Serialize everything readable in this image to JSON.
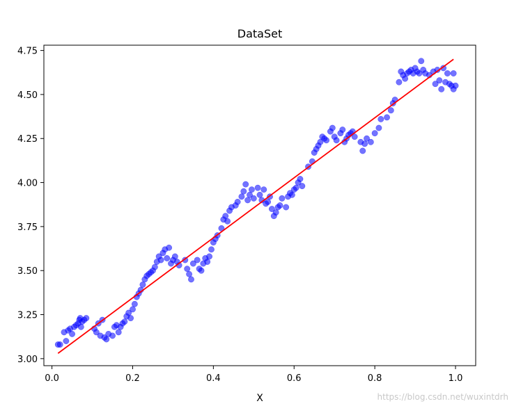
{
  "watermark": "https://blog.csdn.net/wuxintdrh",
  "chart_data": {
    "type": "scatter",
    "title": "DataSet",
    "xlabel": "X",
    "ylabel": "",
    "xlim": [
      -0.02,
      1.05
    ],
    "ylim": [
      2.96,
      4.78
    ],
    "xticks": [
      0.0,
      0.2,
      0.4,
      0.6,
      0.8,
      1.0
    ],
    "xtick_labels": [
      "0.0",
      "0.2",
      "0.4",
      "0.6",
      "0.8",
      "1.0"
    ],
    "yticks": [
      3.0,
      3.25,
      3.5,
      3.75,
      4.0,
      4.25,
      4.5,
      4.75
    ],
    "ytick_labels": [
      "3.00",
      "3.25",
      "3.50",
      "3.75",
      "4.00",
      "4.25",
      "4.50",
      "4.75"
    ],
    "grid": false,
    "colors": {
      "points": "#0000ff",
      "line": "#ff0000"
    },
    "series": [
      {
        "kind": "scatter",
        "points": [
          [
            0.015,
            3.08
          ],
          [
            0.02,
            3.08
          ],
          [
            0.03,
            3.15
          ],
          [
            0.035,
            3.1
          ],
          [
            0.04,
            3.16
          ],
          [
            0.045,
            3.17
          ],
          [
            0.05,
            3.14
          ],
          [
            0.055,
            3.18
          ],
          [
            0.06,
            3.19
          ],
          [
            0.065,
            3.2
          ],
          [
            0.068,
            3.22
          ],
          [
            0.07,
            3.23
          ],
          [
            0.072,
            3.18
          ],
          [
            0.075,
            3.21
          ],
          [
            0.08,
            3.22
          ],
          [
            0.085,
            3.23
          ],
          [
            0.105,
            3.17
          ],
          [
            0.11,
            3.15
          ],
          [
            0.115,
            3.2
          ],
          [
            0.12,
            3.13
          ],
          [
            0.125,
            3.22
          ],
          [
            0.13,
            3.12
          ],
          [
            0.135,
            3.11
          ],
          [
            0.14,
            3.14
          ],
          [
            0.15,
            3.13
          ],
          [
            0.155,
            3.18
          ],
          [
            0.16,
            3.19
          ],
          [
            0.165,
            3.15
          ],
          [
            0.17,
            3.18
          ],
          [
            0.175,
            3.2
          ],
          [
            0.18,
            3.21
          ],
          [
            0.185,
            3.24
          ],
          [
            0.19,
            3.26
          ],
          [
            0.195,
            3.23
          ],
          [
            0.2,
            3.28
          ],
          [
            0.205,
            3.31
          ],
          [
            0.21,
            3.35
          ],
          [
            0.215,
            3.37
          ],
          [
            0.22,
            3.39
          ],
          [
            0.225,
            3.42
          ],
          [
            0.23,
            3.45
          ],
          [
            0.235,
            3.47
          ],
          [
            0.24,
            3.48
          ],
          [
            0.245,
            3.49
          ],
          [
            0.25,
            3.5
          ],
          [
            0.255,
            3.52
          ],
          [
            0.26,
            3.55
          ],
          [
            0.265,
            3.58
          ],
          [
            0.27,
            3.56
          ],
          [
            0.275,
            3.6
          ],
          [
            0.28,
            3.62
          ],
          [
            0.285,
            3.57
          ],
          [
            0.29,
            3.63
          ],
          [
            0.295,
            3.54
          ],
          [
            0.3,
            3.56
          ],
          [
            0.305,
            3.58
          ],
          [
            0.31,
            3.55
          ],
          [
            0.315,
            3.53
          ],
          [
            0.33,
            3.56
          ],
          [
            0.335,
            3.51
          ],
          [
            0.34,
            3.48
          ],
          [
            0.345,
            3.45
          ],
          [
            0.35,
            3.54
          ],
          [
            0.36,
            3.56
          ],
          [
            0.365,
            3.51
          ],
          [
            0.37,
            3.5
          ],
          [
            0.375,
            3.54
          ],
          [
            0.38,
            3.57
          ],
          [
            0.385,
            3.55
          ],
          [
            0.39,
            3.58
          ],
          [
            0.395,
            3.62
          ],
          [
            0.4,
            3.66
          ],
          [
            0.405,
            3.68
          ],
          [
            0.41,
            3.7
          ],
          [
            0.42,
            3.74
          ],
          [
            0.425,
            3.79
          ],
          [
            0.43,
            3.81
          ],
          [
            0.435,
            3.78
          ],
          [
            0.44,
            3.84
          ],
          [
            0.445,
            3.86
          ],
          [
            0.455,
            3.87
          ],
          [
            0.46,
            3.89
          ],
          [
            0.47,
            3.92
          ],
          [
            0.475,
            3.95
          ],
          [
            0.48,
            3.99
          ],
          [
            0.485,
            3.9
          ],
          [
            0.49,
            3.93
          ],
          [
            0.495,
            3.96
          ],
          [
            0.5,
            3.91
          ],
          [
            0.51,
            3.97
          ],
          [
            0.515,
            3.93
          ],
          [
            0.52,
            3.9
          ],
          [
            0.525,
            3.96
          ],
          [
            0.53,
            3.88
          ],
          [
            0.535,
            3.89
          ],
          [
            0.54,
            3.92
          ],
          [
            0.545,
            3.85
          ],
          [
            0.55,
            3.81
          ],
          [
            0.555,
            3.83
          ],
          [
            0.56,
            3.86
          ],
          [
            0.565,
            3.87
          ],
          [
            0.57,
            3.91
          ],
          [
            0.58,
            3.86
          ],
          [
            0.585,
            3.92
          ],
          [
            0.59,
            3.94
          ],
          [
            0.595,
            3.93
          ],
          [
            0.6,
            3.96
          ],
          [
            0.605,
            3.97
          ],
          [
            0.61,
            4.0
          ],
          [
            0.615,
            4.02
          ],
          [
            0.62,
            3.98
          ],
          [
            0.635,
            4.09
          ],
          [
            0.645,
            4.12
          ],
          [
            0.65,
            4.17
          ],
          [
            0.655,
            4.19
          ],
          [
            0.66,
            4.21
          ],
          [
            0.665,
            4.23
          ],
          [
            0.67,
            4.26
          ],
          [
            0.675,
            4.25
          ],
          [
            0.68,
            4.24
          ],
          [
            0.69,
            4.29
          ],
          [
            0.695,
            4.31
          ],
          [
            0.7,
            4.26
          ],
          [
            0.705,
            4.24
          ],
          [
            0.715,
            4.28
          ],
          [
            0.72,
            4.3
          ],
          [
            0.725,
            4.23
          ],
          [
            0.73,
            4.25
          ],
          [
            0.735,
            4.27
          ],
          [
            0.74,
            4.28
          ],
          [
            0.745,
            4.29
          ],
          [
            0.75,
            4.26
          ],
          [
            0.765,
            4.23
          ],
          [
            0.77,
            4.18
          ],
          [
            0.775,
            4.22
          ],
          [
            0.78,
            4.25
          ],
          [
            0.79,
            4.23
          ],
          [
            0.8,
            4.28
          ],
          [
            0.81,
            4.31
          ],
          [
            0.815,
            4.36
          ],
          [
            0.83,
            4.37
          ],
          [
            0.84,
            4.41
          ],
          [
            0.845,
            4.45
          ],
          [
            0.85,
            4.47
          ],
          [
            0.86,
            4.57
          ],
          [
            0.865,
            4.63
          ],
          [
            0.87,
            4.61
          ],
          [
            0.875,
            4.59
          ],
          [
            0.88,
            4.62
          ],
          [
            0.885,
            4.63
          ],
          [
            0.89,
            4.64
          ],
          [
            0.895,
            4.62
          ],
          [
            0.9,
            4.65
          ],
          [
            0.905,
            4.63
          ],
          [
            0.91,
            4.62
          ],
          [
            0.915,
            4.69
          ],
          [
            0.92,
            4.64
          ],
          [
            0.925,
            4.62
          ],
          [
            0.935,
            4.61
          ],
          [
            0.945,
            4.63
          ],
          [
            0.95,
            4.56
          ],
          [
            0.955,
            4.64
          ],
          [
            0.96,
            4.58
          ],
          [
            0.965,
            4.53
          ],
          [
            0.97,
            4.65
          ],
          [
            0.975,
            4.57
          ],
          [
            0.98,
            4.62
          ],
          [
            0.985,
            4.56
          ],
          [
            0.99,
            4.55
          ],
          [
            0.995,
            4.53
          ],
          [
            0.995,
            4.62
          ],
          [
            1.0,
            4.55
          ]
        ]
      },
      {
        "kind": "line",
        "points": [
          [
            0.015,
            3.03
          ],
          [
            0.995,
            4.7
          ]
        ]
      }
    ]
  }
}
